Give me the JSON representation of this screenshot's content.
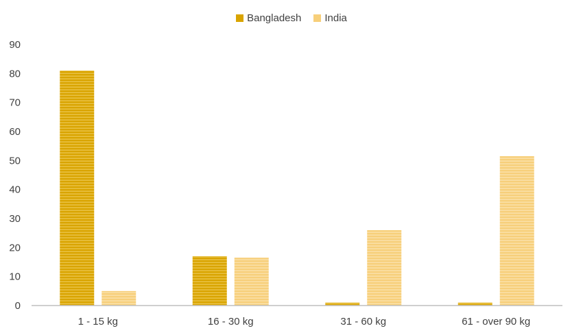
{
  "chart_data": {
    "type": "bar",
    "categories": [
      "1 - 15 kg",
      "16 - 30 kg",
      "31 - 60 kg",
      "61 - over 90 kg"
    ],
    "series": [
      {
        "name": "Bangladesh",
        "values": [
          81,
          17,
          1,
          1
        ],
        "color": "#D9A400"
      },
      {
        "name": "India",
        "values": [
          5,
          16.5,
          26,
          51.5
        ],
        "color": "#F7CF7A"
      }
    ],
    "yticks": [
      0,
      10,
      20,
      30,
      40,
      50,
      60,
      70,
      80,
      90
    ],
    "ylim": [
      0,
      90
    ],
    "grid": false,
    "legend_position": "top-center"
  }
}
